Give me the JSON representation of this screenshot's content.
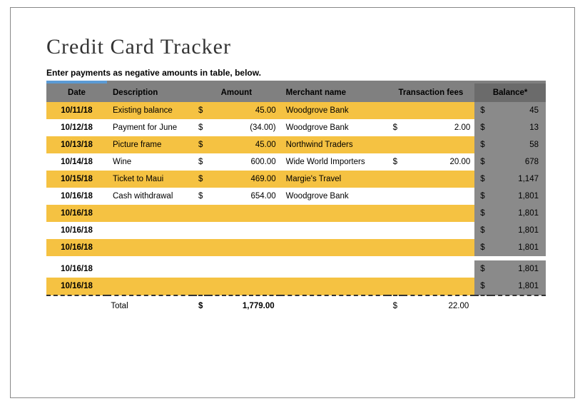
{
  "title": "Credit Card Tracker",
  "subtitle": "Enter payments as negative amounts in table, below.",
  "columns": {
    "date": "Date",
    "description": "Description",
    "amount": "Amount",
    "merchant": "Merchant name",
    "fees": "Transaction fees",
    "balance": "Balance*"
  },
  "currency_symbol": "$",
  "rows": [
    {
      "date": "10/11/18",
      "description": "Existing balance",
      "amount": "45.00",
      "merchant": "Woodgrove Bank",
      "fees_sym": "",
      "fees": "",
      "balance": "45"
    },
    {
      "date": "10/12/18",
      "description": "Payment for June",
      "amount": "(34.00)",
      "merchant": "Woodgrove Bank",
      "fees_sym": "$",
      "fees": "2.00",
      "balance": "13"
    },
    {
      "date": "10/13/18",
      "description": "Picture frame",
      "amount": "45.00",
      "merchant": "Northwind Traders",
      "fees_sym": "",
      "fees": "",
      "balance": "58"
    },
    {
      "date": "10/14/18",
      "description": "Wine",
      "amount": "600.00",
      "merchant": "Wide World Importers",
      "fees_sym": "$",
      "fees": "20.00",
      "balance": "678"
    },
    {
      "date": "10/15/18",
      "description": "Ticket to Maui",
      "amount": "469.00",
      "merchant": "Margie's Travel",
      "fees_sym": "",
      "fees": "",
      "balance": "1,147"
    },
    {
      "date": "10/16/18",
      "description": "Cash withdrawal",
      "amount": "654.00",
      "merchant": "Woodgrove Bank",
      "fees_sym": "",
      "fees": "",
      "balance": "1,801"
    },
    {
      "date": "10/16/18",
      "description": "",
      "amount": "",
      "merchant": "",
      "fees_sym": "",
      "fees": "",
      "balance": "1,801"
    },
    {
      "date": "10/16/18",
      "description": "",
      "amount": "",
      "merchant": "",
      "fees_sym": "",
      "fees": "",
      "balance": "1,801"
    },
    {
      "date": "10/16/18",
      "description": "",
      "amount": "",
      "merchant": "",
      "fees_sym": "",
      "fees": "",
      "balance": "1,801"
    },
    {
      "date": "10/16/18",
      "description": "",
      "amount": "",
      "merchant": "",
      "fees_sym": "",
      "fees": "",
      "balance": "1,801"
    },
    {
      "date": "10/16/18",
      "description": "",
      "amount": "",
      "merchant": "",
      "fees_sym": "",
      "fees": "",
      "balance": "1,801"
    }
  ],
  "spacer_after_index": 8,
  "footer": {
    "label": "Total",
    "amount": "1,779.00",
    "fees": "22.00"
  },
  "colors": {
    "header_bg": "#808080",
    "balance_header_bg": "#6b6b6b",
    "odd_row": "#f5c242",
    "even_row": "#ffffff",
    "balance_cell": "#8a8a8a",
    "accent_blue": "#5b9bd5",
    "border_gray": "#888",
    "dash": "#333"
  }
}
